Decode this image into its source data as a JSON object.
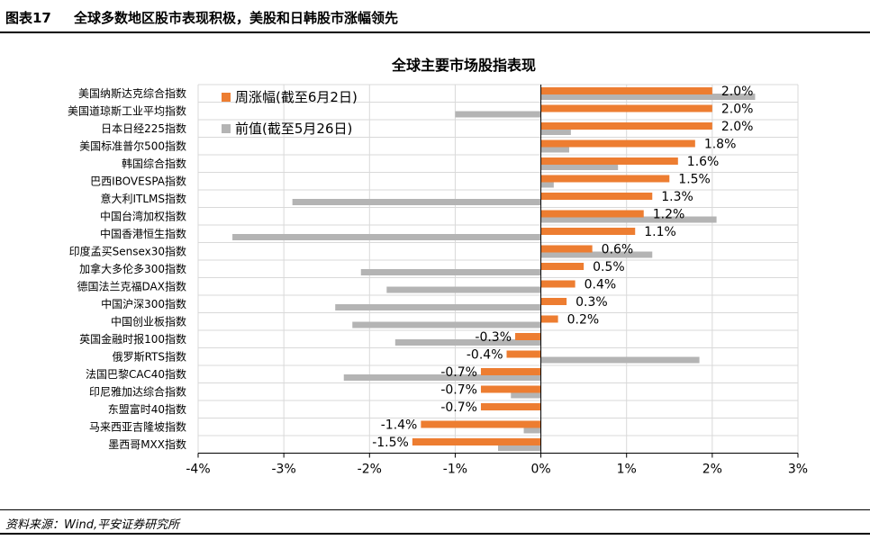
{
  "figure": {
    "label": "图表17",
    "title": "全球多数地区股市表现积极，美股和日韩股市涨幅领先",
    "source": "资料来源：Wind,平安证券研究所"
  },
  "colors": {
    "current": "#ED7D31",
    "previous": "#B4B4B4",
    "grid": "#D9D9D9",
    "axis": "#000000"
  },
  "chart_data": {
    "type": "bar",
    "orientation": "horizontal",
    "title": "全球主要市场股指表现",
    "categories": [
      "美国纳斯达克综合指数",
      "美国道琼斯工业平均指数",
      "日本日经225指数",
      "美国标准普尔500指数",
      "韩国综合指数",
      "巴西IBOVESPA指数",
      "意大利ITLMS指数",
      "中国台湾加权指数",
      "中国香港恒生指数",
      "印度孟买Sensex30指数",
      "加拿大多伦多300指数",
      "德国法兰克福DAX指数",
      "中国沪深300指数",
      "中国创业板指数",
      "英国金融时报100指数",
      "俄罗斯RTS指数",
      "法国巴黎CAC40指数",
      "印尼雅加达综合指数",
      "东盟富时40指数",
      "马来西亚吉隆坡指数",
      "墨西哥MXX指数"
    ],
    "series": [
      {
        "name": "周涨幅(截至6月2日)",
        "values": [
          2.0,
          2.0,
          2.0,
          1.8,
          1.6,
          1.5,
          1.3,
          1.2,
          1.1,
          0.6,
          0.5,
          0.4,
          0.3,
          0.2,
          -0.3,
          -0.4,
          -0.7,
          -0.7,
          -0.7,
          -1.4,
          -1.5
        ],
        "labels": [
          "2.0%",
          "2.0%",
          "2.0%",
          "1.8%",
          "1.6%",
          "1.5%",
          "1.3%",
          "1.2%",
          "1.1%",
          "0.6%",
          "0.5%",
          "0.4%",
          "0.3%",
          "0.2%",
          "-0.3%",
          "-0.4%",
          "-0.7%",
          "-0.7%",
          "-0.7%",
          "-1.4%",
          "-1.5%"
        ]
      },
      {
        "name": "前值(截至5月26日)",
        "values": [
          2.5,
          -1.0,
          0.35,
          0.33,
          0.9,
          0.15,
          -2.9,
          2.05,
          -3.6,
          1.3,
          -2.1,
          -1.8,
          -2.4,
          -2.2,
          -1.7,
          1.85,
          -2.3,
          -0.35,
          0.0,
          -0.2,
          -0.5
        ]
      }
    ],
    "xlim": [
      -4,
      3
    ],
    "xticks": [
      "-4%",
      "-3%",
      "-2%",
      "-1%",
      "0%",
      "1%",
      "2%",
      "3%"
    ],
    "grid": true,
    "legend": "top-left"
  }
}
